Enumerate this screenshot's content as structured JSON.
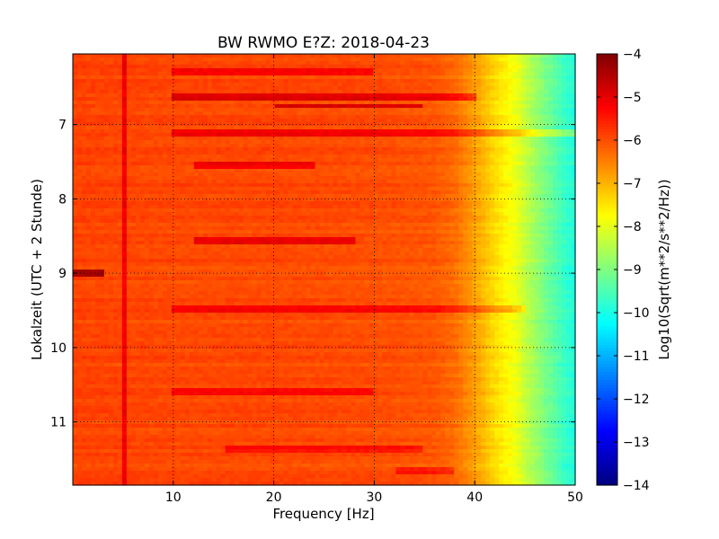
{
  "chart_data": {
    "type": "heatmap",
    "title": "BW RWMO E?Z: 2018-04-23",
    "xlabel": "Frequency [Hz]",
    "ylabel": "Lokalzeit (UTC + 2 Stunde)",
    "colorbar_label": "Log10(Sqrt(m**2/s**2/Hz))",
    "xlim": [
      0,
      50
    ],
    "ylim": [
      11.85,
      6.05
    ],
    "y_inverted": true,
    "x_ticks": [
      10,
      20,
      30,
      40,
      50
    ],
    "x_tick_labels": [
      "10",
      "20",
      "30",
      "40",
      "50"
    ],
    "y_ticks": [
      7,
      8,
      9,
      10,
      11
    ],
    "y_tick_labels": [
      "7",
      "8",
      "9",
      "10",
      "11"
    ],
    "colorbar_range": [
      -14,
      -4
    ],
    "colorbar_ticks": [
      -4,
      -5,
      -6,
      -7,
      -8,
      -9,
      -10,
      -11,
      -12,
      -13,
      -14
    ],
    "colorbar_tick_labels": [
      "−4",
      "−5",
      "−6",
      "−7",
      "−8",
      "−9",
      "−10",
      "−11",
      "−12",
      "−13",
      "−14"
    ],
    "colormap": "jet",
    "grid": true,
    "grid_style": "dotted",
    "spectrum_profile": {
      "frequency_hz": [
        0,
        10,
        20,
        30,
        36,
        38,
        40,
        42,
        44,
        46,
        48,
        50
      ],
      "log10_amplitude": [
        -5.9,
        -5.95,
        -5.95,
        -6.0,
        -6.1,
        -6.3,
        -6.8,
        -7.4,
        -7.9,
        -8.7,
        -9.4,
        -10.0
      ]
    },
    "elevated_bands": [
      {
        "time": 6.3,
        "f_from": 10,
        "f_to": 30,
        "delta": 0.7
      },
      {
        "time": 6.65,
        "f_from": 10,
        "f_to": 40,
        "delta": 1.0
      },
      {
        "time": 6.75,
        "f_from": 20,
        "f_to": 35,
        "delta": 1.1
      },
      {
        "time": 7.1,
        "f_from": 10,
        "f_to": 50,
        "delta": 0.8
      },
      {
        "time": 7.55,
        "f_from": 12,
        "f_to": 24,
        "delta": 0.8
      },
      {
        "time": 8.55,
        "f_from": 12,
        "f_to": 28,
        "delta": 0.9
      },
      {
        "time": 9.0,
        "f_from": 0,
        "f_to": 3,
        "delta": 1.6
      },
      {
        "time": 9.5,
        "f_from": 10,
        "f_to": 45,
        "delta": 0.7
      },
      {
        "time": 10.6,
        "f_from": 10,
        "f_to": 30,
        "delta": 0.6
      },
      {
        "time": 11.35,
        "f_from": 15,
        "f_to": 35,
        "delta": 0.6
      },
      {
        "time": 11.65,
        "f_from": 32,
        "f_to": 38,
        "delta": 0.6
      }
    ],
    "persistent_lines": [
      {
        "frequency": 5.0,
        "time_from": 6.05,
        "time_to": 11.85,
        "delta": 0.8
      }
    ]
  }
}
